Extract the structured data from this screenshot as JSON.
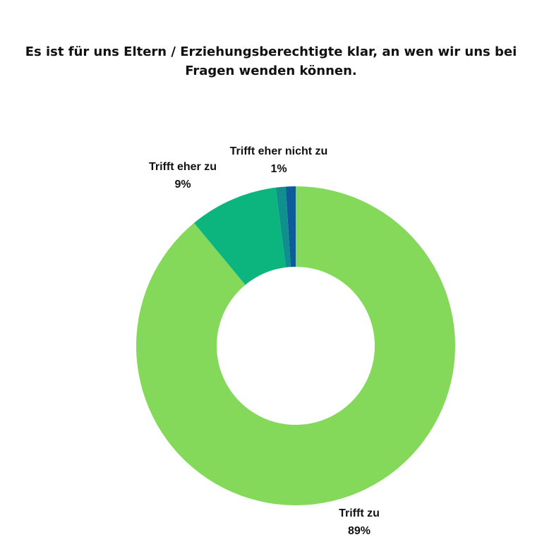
{
  "chart_data": {
    "type": "donut",
    "title": [
      "Es ist für uns Eltern / Erziehungsberechtigte klar, an wen wir uns bei",
      "Fragen wenden können."
    ],
    "categories": [
      "Trifft zu",
      "Trifft eher zu",
      null,
      "Trifft eher nicht zu"
    ],
    "values": [
      89,
      9,
      1,
      1
    ],
    "value_labels": [
      "89%",
      "9%",
      null,
      "1%"
    ],
    "colors": [
      "#84d95a",
      "#0db57e",
      "#108f8f",
      "#0d5c99"
    ]
  }
}
